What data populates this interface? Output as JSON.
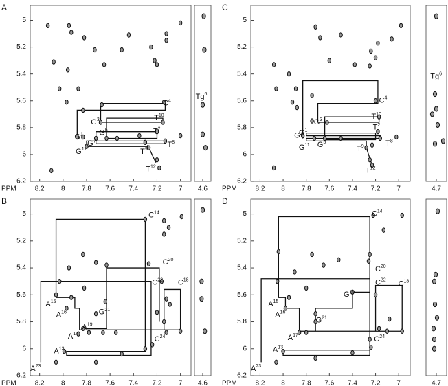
{
  "chart_data": [
    {
      "type": "scatter",
      "panel_label": "A",
      "xlabel": "PPM",
      "xlim": [
        8.28,
        6.91
      ],
      "ylim": [
        4.89,
        6.2
      ],
      "xticks": [
        8.2,
        8.0,
        7.8,
        7.6,
        7.4,
        7.2,
        7.0
      ],
      "yticks": [
        5.0,
        5.2,
        5.4,
        5.6,
        5.8,
        6.0,
        6.2
      ],
      "strip_xlim": [
        4.75,
        4.45
      ],
      "strip_xticks": [
        4.6
      ],
      "peaks": {
        "x": [
          8.13,
          7.95,
          7.93,
          7.82,
          7.73,
          7.65,
          7.5,
          7.44,
          7.25,
          7.2,
          7.12,
          7.12,
          7.0,
          7.22,
          8.08,
          7.96,
          8.03,
          7.87,
          7.97,
          7.83,
          7.67,
          7.14,
          7.83,
          7.88,
          7.68,
          7.63,
          7.72,
          7.15,
          7.2,
          7.13,
          7.3,
          7.27,
          7.2,
          7.18,
          8.1,
          7.8,
          7.0,
          7.35,
          7.54
        ],
        "y": [
          5.04,
          5.04,
          5.09,
          5.13,
          5.22,
          5.33,
          5.22,
          5.11,
          5.2,
          5.33,
          5.1,
          5.15,
          5.02,
          5.3,
          5.31,
          5.37,
          5.51,
          5.51,
          5.61,
          5.67,
          5.63,
          5.61,
          5.87,
          5.87,
          5.76,
          5.88,
          5.88,
          5.76,
          5.83,
          5.9,
          5.91,
          5.95,
          6.04,
          6.1,
          6.12,
          5.94,
          5.86,
          5.86,
          5.88
        ]
      },
      "strip_peaks": {
        "x": [
          4.58,
          4.57,
          4.6,
          4.6,
          4.55
        ],
        "y": [
          4.97,
          5.22,
          5.63,
          5.85,
          5.95
        ]
      },
      "walk": {
        "x": [
          7.88,
          7.88,
          7.13,
          7.13,
          7.68,
          7.68,
          7.15,
          7.15,
          7.63,
          7.63,
          7.2,
          7.2,
          7.72,
          7.72,
          7.13,
          7.13,
          7.8,
          7.8,
          7.28,
          7.28,
          7.21
        ],
        "y": [
          5.87,
          5.67,
          5.67,
          5.62,
          5.62,
          5.76,
          5.76,
          5.73,
          5.73,
          5.88,
          5.88,
          5.83,
          5.83,
          5.92,
          5.92,
          5.9,
          5.9,
          5.94,
          5.94,
          5.93,
          6.06
        ]
      },
      "annotations": [
        {
          "text": "G",
          "sup": "1",
          "x": 7.83,
          "y": 5.87
        },
        {
          "text": "G",
          "sup": "3",
          "x": 7.69,
          "y": 5.76
        },
        {
          "text": "G",
          "sup": "5",
          "x": 7.62,
          "y": 5.84
        },
        {
          "text": "G",
          "sup": "7",
          "x": 7.72,
          "y": 5.92
        },
        {
          "text": "G",
          "sup": "11",
          "x": 7.8,
          "y": 5.98
        },
        {
          "text": "T",
          "sup": "2",
          "x": 7.17,
          "y": 5.83
        },
        {
          "text": "T",
          "sup": "10",
          "x": 7.14,
          "y": 5.73
        },
        {
          "text": "C",
          "sup": "4",
          "x": 7.08,
          "y": 5.62
        },
        {
          "text": "T",
          "sup": "8",
          "x": 7.05,
          "y": 5.93
        },
        {
          "text": "T",
          "sup": "9",
          "x": 7.28,
          "y": 5.98
        },
        {
          "text": "T",
          "sup": "12",
          "x": 7.21,
          "y": 6.11
        }
      ],
      "strip_annotations": [
        {
          "text": "Tg",
          "sup": "6",
          "x": 4.52,
          "y": 5.57
        }
      ]
    },
    {
      "type": "scatter",
      "panel_label": "B",
      "xlabel": "PPM",
      "xlim": [
        8.28,
        6.91
      ],
      "ylim": [
        4.89,
        6.2
      ],
      "xticks": [
        8.2,
        8.0,
        7.8,
        7.6,
        7.4,
        7.2,
        7.0
      ],
      "yticks": [
        5.0,
        5.2,
        5.4,
        5.6,
        5.8,
        6.0,
        6.2
      ],
      "strip_xlim": [
        4.75,
        4.45
      ],
      "strip_xticks": [
        4.6
      ],
      "peaks": {
        "x": [
          7.3,
          6.99,
          7.14,
          7.1,
          7.14,
          7.27,
          7.83,
          7.72,
          7.63,
          7.95,
          8.03,
          7.82,
          7.93,
          8.06,
          7.97,
          7.83,
          7.87,
          7.78,
          7.66,
          7.55,
          7.72,
          7.64,
          7.16,
          7.12,
          7.09,
          7.2,
          7.14,
          7.24,
          7.3,
          7.12,
          7.0,
          7.99,
          8.06,
          7.5,
          7.72
        ],
        "y": [
          5.04,
          5.02,
          5.05,
          5.1,
          5.15,
          5.37,
          5.3,
          5.36,
          5.38,
          5.4,
          5.5,
          5.55,
          5.62,
          5.6,
          5.7,
          5.85,
          5.89,
          5.88,
          5.88,
          5.88,
          5.74,
          5.65,
          5.5,
          5.63,
          5.67,
          5.73,
          5.8,
          5.97,
          6.0,
          5.88,
          5.87,
          6.02,
          6.1,
          6.04,
          6.1
        ]
      },
      "strip_peaks": {
        "x": [
          4.6,
          4.62,
          4.62,
          4.56
        ],
        "y": [
          4.97,
          5.5,
          5.63,
          5.87
        ]
      },
      "walk": {
        "x": [
          8.19,
          8.19,
          7.25,
          7.25,
          7.97,
          7.97,
          7.3,
          7.3,
          8.06,
          8.06,
          7.9,
          7.9,
          7.86,
          7.86,
          7.14,
          7.14,
          7.0,
          7.0,
          7.84,
          7.84,
          7.63,
          7.63,
          7.18,
          7.18
        ],
        "y": [
          6.1,
          5.5,
          5.5,
          6.05,
          6.05,
          6.02,
          6.02,
          5.04,
          5.04,
          5.62,
          5.62,
          5.7,
          5.7,
          5.86,
          5.86,
          5.56,
          5.56,
          5.86,
          5.86,
          5.85,
          5.85,
          5.4,
          5.4,
          5.8
        ]
      },
      "annotations": [
        {
          "text": "A",
          "sup": "13",
          "x": 7.99,
          "y": 6.02
        },
        {
          "text": "A",
          "sup": "15",
          "x": 8.06,
          "y": 5.67
        },
        {
          "text": "A",
          "sup": "16",
          "x": 7.97,
          "y": 5.75
        },
        {
          "text": "A",
          "sup": "17",
          "x": 7.87,
          "y": 5.91
        },
        {
          "text": "A",
          "sup": "19",
          "x": 7.75,
          "y": 5.84
        },
        {
          "text": "A",
          "sup": "23",
          "x": 8.19,
          "y": 6.15
        },
        {
          "text": "C",
          "sup": "14",
          "x": 7.18,
          "y": 5.01
        },
        {
          "text": "C",
          "sup": "18",
          "x": 6.93,
          "y": 5.51
        },
        {
          "text": "C",
          "sup": "20",
          "x": 7.06,
          "y": 5.36
        },
        {
          "text": "C",
          "sup": "22",
          "x": 7.15,
          "y": 5.51
        },
        {
          "text": "C",
          "sup": "24",
          "x": 7.13,
          "y": 5.93
        },
        {
          "text": "G",
          "sup": "21",
          "x": 7.6,
          "y": 5.73
        }
      ],
      "strip_annotations": []
    },
    {
      "type": "scatter",
      "panel_label": "C",
      "xlabel": "PPM",
      "xlim": [
        8.28,
        6.9
      ],
      "ylim": [
        4.89,
        6.2
      ],
      "xticks": [
        8.2,
        8.0,
        7.8,
        7.6,
        7.4,
        7.2,
        7.0
      ],
      "yticks": [
        5.0,
        5.2,
        5.4,
        5.6,
        5.8,
        6.0,
        6.2
      ],
      "strip_xlim": [
        4.85,
        4.55
      ],
      "strip_xticks": [
        4.7
      ],
      "peaks": {
        "x": [
          7.72,
          7.5,
          7.68,
          7.24,
          7.18,
          7.2,
          7.25,
          7.06,
          6.98,
          7.6,
          7.38,
          8.08,
          7.95,
          7.89,
          8.06,
          7.75,
          7.92,
          7.88,
          7.2,
          7.62,
          7.75,
          7.17,
          7.83,
          7.73,
          7.64,
          7.18,
          7.16,
          7.23,
          7.28,
          7.25,
          7.23,
          8.08,
          7.02,
          7.5
        ],
        "y": [
          5.05,
          5.11,
          5.13,
          5.23,
          5.17,
          5.28,
          5.34,
          5.14,
          5.04,
          5.3,
          5.33,
          5.33,
          5.4,
          5.51,
          5.51,
          5.56,
          5.61,
          5.65,
          5.6,
          5.76,
          5.75,
          5.72,
          5.86,
          5.88,
          5.88,
          5.83,
          5.88,
          5.93,
          5.95,
          6.04,
          6.08,
          6.1,
          5.87,
          5.88
        ]
      },
      "strip_peaks": {
        "x": [
          4.7,
          4.72,
          4.7,
          4.76,
          4.68,
          4.72,
          4.6
        ],
        "y": [
          4.97,
          5.55,
          5.66,
          5.7,
          5.78,
          5.92,
          5.9
        ]
      },
      "walk": {
        "x": [
          7.83,
          7.83,
          7.18,
          7.18,
          7.7,
          7.7,
          7.17,
          7.17,
          7.64,
          7.64,
          7.2,
          7.2,
          7.8,
          7.8,
          7.16,
          7.16,
          7.8,
          7.8,
          7.28,
          7.28,
          7.23
        ],
        "y": [
          5.88,
          5.45,
          5.45,
          5.62,
          5.62,
          5.76,
          5.76,
          5.72,
          5.72,
          5.89,
          5.89,
          5.84,
          5.84,
          5.86,
          5.86,
          5.88,
          5.88,
          5.9,
          5.9,
          5.95,
          6.08
        ]
      },
      "annotations": [
        {
          "text": "G",
          "sup": "1",
          "x": 7.79,
          "y": 5.84
        },
        {
          "text": "G",
          "sup": "3",
          "x": 7.66,
          "y": 5.76
        },
        {
          "text": "G",
          "sup": "5",
          "x": 7.63,
          "y": 5.93
        },
        {
          "text": "G",
          "sup": "7",
          "x": 7.83,
          "y": 5.86
        },
        {
          "text": "G",
          "sup": "11",
          "x": 7.77,
          "y": 5.95
        },
        {
          "text": "T",
          "sup": "2",
          "x": 7.16,
          "y": 5.8
        },
        {
          "text": "T",
          "sup": "10",
          "x": 7.15,
          "y": 5.72
        },
        {
          "text": "C",
          "sup": "4",
          "x": 7.1,
          "y": 5.6
        },
        {
          "text": "T",
          "sup": "8",
          "x": 7.05,
          "y": 5.92
        },
        {
          "text": "T",
          "sup": "9",
          "x": 7.3,
          "y": 5.96
        },
        {
          "text": "T",
          "sup": "12",
          "x": 7.2,
          "y": 6.12
        }
      ],
      "strip_annotations": [
        {
          "text": "Tg",
          "sup": "6",
          "x": 4.62,
          "y": 5.42
        }
      ]
    },
    {
      "type": "scatter",
      "panel_label": "D",
      "xlabel": "PPM",
      "xlim": [
        8.28,
        6.9
      ],
      "ylim": [
        4.89,
        6.2
      ],
      "xticks": [
        8.2,
        8.0,
        7.8,
        7.6,
        7.4,
        7.2,
        7.0
      ],
      "yticks": [
        5.0,
        5.2,
        5.4,
        5.6,
        5.8,
        6.0,
        6.2
      ],
      "strip_xlim": [
        4.85,
        4.55
      ],
      "strip_xticks": [
        4.7
      ],
      "peaks": {
        "x": [
          7.22,
          6.97,
          7.13,
          7.25,
          7.26,
          7.75,
          7.65,
          7.52,
          8.04,
          7.9,
          8.05,
          7.8,
          7.4,
          7.95,
          7.98,
          7.86,
          7.8,
          7.72,
          7.72,
          7.2,
          7.08,
          7.17,
          7.25,
          7.24,
          7.1,
          6.97,
          8.0,
          8.06,
          7.4,
          7.72
        ],
        "y": [
          5.01,
          5.01,
          5.12,
          5.3,
          5.35,
          5.3,
          5.38,
          5.34,
          5.28,
          5.43,
          5.5,
          5.55,
          5.58,
          5.62,
          5.7,
          5.88,
          5.88,
          5.8,
          5.74,
          5.6,
          5.78,
          5.85,
          5.93,
          5.99,
          5.87,
          5.87,
          6.02,
          6.1,
          6.03,
          6.07
        ]
      },
      "strip_peaks": {
        "x": [
          4.68,
          4.71,
          4.73,
          4.72,
          4.69,
          4.74,
          4.73,
          4.73
        ],
        "y": [
          4.98,
          5.45,
          5.5,
          5.67,
          5.77,
          5.85,
          5.93,
          6.0
        ]
      },
      "walk": {
        "x": [
          8.19,
          8.19,
          7.25,
          7.25,
          8.0,
          8.0,
          7.25,
          7.25,
          8.04,
          8.04,
          7.98,
          7.98,
          7.86,
          7.86,
          7.2,
          7.2,
          6.97,
          6.97,
          7.72,
          7.72,
          7.4,
          7.4,
          7.25,
          7.25
        ],
        "y": [
          6.1,
          5.48,
          5.48,
          6.05,
          6.05,
          6.01,
          6.01,
          5.02,
          5.02,
          5.62,
          5.62,
          5.7,
          5.7,
          5.87,
          5.87,
          5.53,
          5.53,
          5.87,
          5.87,
          5.7,
          5.7,
          5.58,
          5.58,
          5.45
        ]
      },
      "annotations": [
        {
          "text": "A",
          "sup": "13",
          "x": 8.0,
          "y": 6.01
        },
        {
          "text": "A",
          "sup": "15",
          "x": 8.04,
          "y": 5.67
        },
        {
          "text": "A",
          "sup": "16",
          "x": 7.98,
          "y": 5.75
        },
        {
          "text": "A",
          "sup": "17",
          "x": 7.87,
          "y": 5.92
        },
        {
          "text": "A",
          "sup": "23",
          "x": 8.19,
          "y": 6.15
        },
        {
          "text": "C",
          "sup": "14",
          "x": 7.14,
          "y": 5.0
        },
        {
          "text": "C",
          "sup": "18",
          "x": 6.91,
          "y": 5.52
        },
        {
          "text": "C",
          "sup": "20",
          "x": 7.11,
          "y": 5.41
        },
        {
          "text": "C",
          "sup": "22",
          "x": 7.11,
          "y": 5.51
        },
        {
          "text": "C",
          "sup": "24",
          "x": 7.12,
          "y": 5.93
        },
        {
          "text": "G",
          "sup": "19",
          "x": 7.38,
          "y": 5.6
        },
        {
          "text": "G",
          "sup": "21",
          "x": 7.62,
          "y": 5.79
        }
      ],
      "strip_annotations": []
    }
  ]
}
